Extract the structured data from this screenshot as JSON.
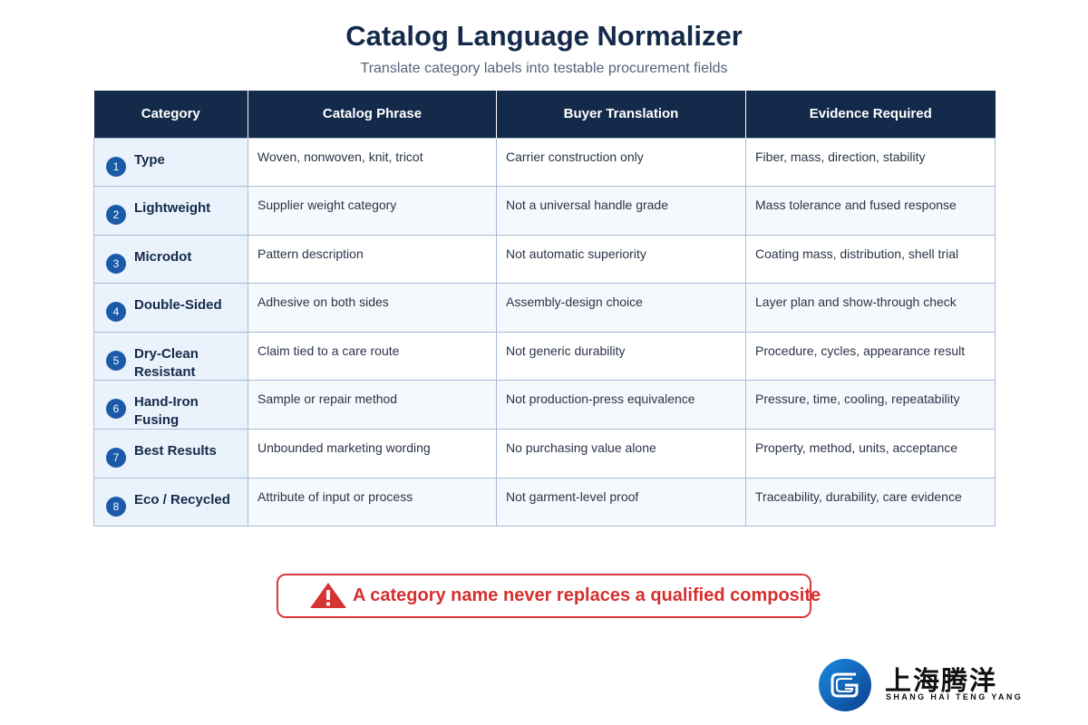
{
  "header": {
    "title": "Catalog Language Normalizer",
    "subtitle": "Translate category labels into testable procurement fields"
  },
  "table": {
    "columns": [
      "Category",
      "Catalog Phrase",
      "Buyer Translation",
      "Evidence Required"
    ],
    "rows": [
      {
        "num": "1",
        "category": "Type",
        "phrase": "Woven, nonwoven, knit, tricot",
        "translation": "Carrier construction only",
        "evidence": "Fiber, mass, direction, stability"
      },
      {
        "num": "2",
        "category": "Lightweight",
        "phrase": "Supplier weight category",
        "translation": "Not a universal handle grade",
        "evidence": "Mass tolerance and fused response"
      },
      {
        "num": "3",
        "category": "Microdot",
        "phrase": "Pattern description",
        "translation": "Not automatic superiority",
        "evidence": "Coating mass, distribution, shell trial"
      },
      {
        "num": "4",
        "category": "Double-Sided",
        "phrase": "Adhesive on both sides",
        "translation": "Assembly-design choice",
        "evidence": "Layer plan and show-through check"
      },
      {
        "num": "5",
        "category": "Dry-Clean Resistant",
        "phrase": "Claim tied to a care route",
        "translation": "Not generic durability",
        "evidence": "Procedure, cycles, appearance result"
      },
      {
        "num": "6",
        "category": "Hand-Iron Fusing",
        "phrase": "Sample or repair method",
        "translation": "Not production-press equivalence",
        "evidence": "Pressure, time, cooling, repeatability"
      },
      {
        "num": "7",
        "category": "Best Results",
        "phrase": "Unbounded marketing wording",
        "translation": "No purchasing value alone",
        "evidence": "Property, method, units, acceptance"
      },
      {
        "num": "8",
        "category": "Eco / Recycled",
        "phrase": "Attribute of input or process",
        "translation": "Not garment-level proof",
        "evidence": "Traceability, durability, care evidence"
      }
    ]
  },
  "warning": {
    "icon": "warning-triangle-icon",
    "text": "A category name never replaces a qualified composite",
    "color": "#d62f2f"
  },
  "logo": {
    "cn": "上海腾洋",
    "en": "SHANG HAI TENG YANG"
  },
  "colors": {
    "header_bg": "#142a4a",
    "badge": "#1a5aa8",
    "category_bg": "#eaf2fb",
    "border": "#a9bcd3"
  }
}
